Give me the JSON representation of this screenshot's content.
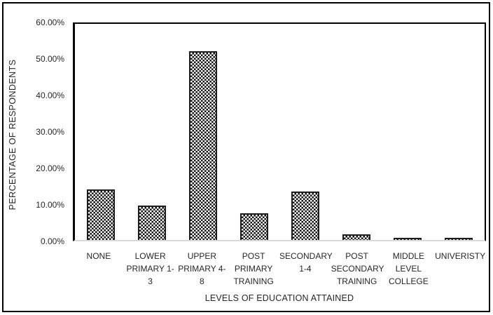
{
  "chart_data": {
    "type": "bar",
    "title": "",
    "xlabel": "LEVELS OF EDUCATION ATTAINED",
    "ylabel": "PERCENTAGE OF RESPONDENTS",
    "categories": [
      "NONE",
      "LOWER PRIMARY 1-3",
      "UPPER PRIMARY 4-8",
      "POST PRIMARY TRAINING",
      "SECONDARY 1-4",
      "POST SECONDARY TRAINING",
      "MIDDLE LEVEL COLLEGE",
      "UNIVERISTY"
    ],
    "categories_wrapped": [
      [
        "NONE"
      ],
      [
        "LOWER",
        "PRIMARY 1-",
        "3"
      ],
      [
        "UPPER",
        "PRIMARY 4-",
        "8"
      ],
      [
        "POST",
        "PRIMARY",
        "TRAINING"
      ],
      [
        "SECONDARY",
        "1-4"
      ],
      [
        "POST",
        "SECONDARY",
        "TRAINING"
      ],
      [
        "MIDDLE",
        "LEVEL",
        "COLLEGE"
      ],
      [
        "UNIVERISTY"
      ]
    ],
    "values": [
      14,
      9.5,
      52.5,
      7.5,
      13.5,
      1.5,
      0.5,
      0.5
    ],
    "unit": "%",
    "ylim": [
      0,
      60
    ],
    "y_tick_step": 10,
    "y_tick_labels": [
      "0.00%",
      "10.00%",
      "20.00%",
      "30.00%",
      "40.00%",
      "50.00%",
      "60.00%"
    ],
    "grid": false,
    "legend": null,
    "bar_fill_pattern": "black-white-checkerboard",
    "colors": {
      "background": "#ffffff",
      "figure_border": "#000000",
      "axis_line": "#000000",
      "baseline": "#d9d9d9",
      "text": "#262626",
      "bar_border": "#1c1c1c",
      "pattern_dark": "#141414",
      "pattern_light": "#fdfdfd"
    }
  }
}
